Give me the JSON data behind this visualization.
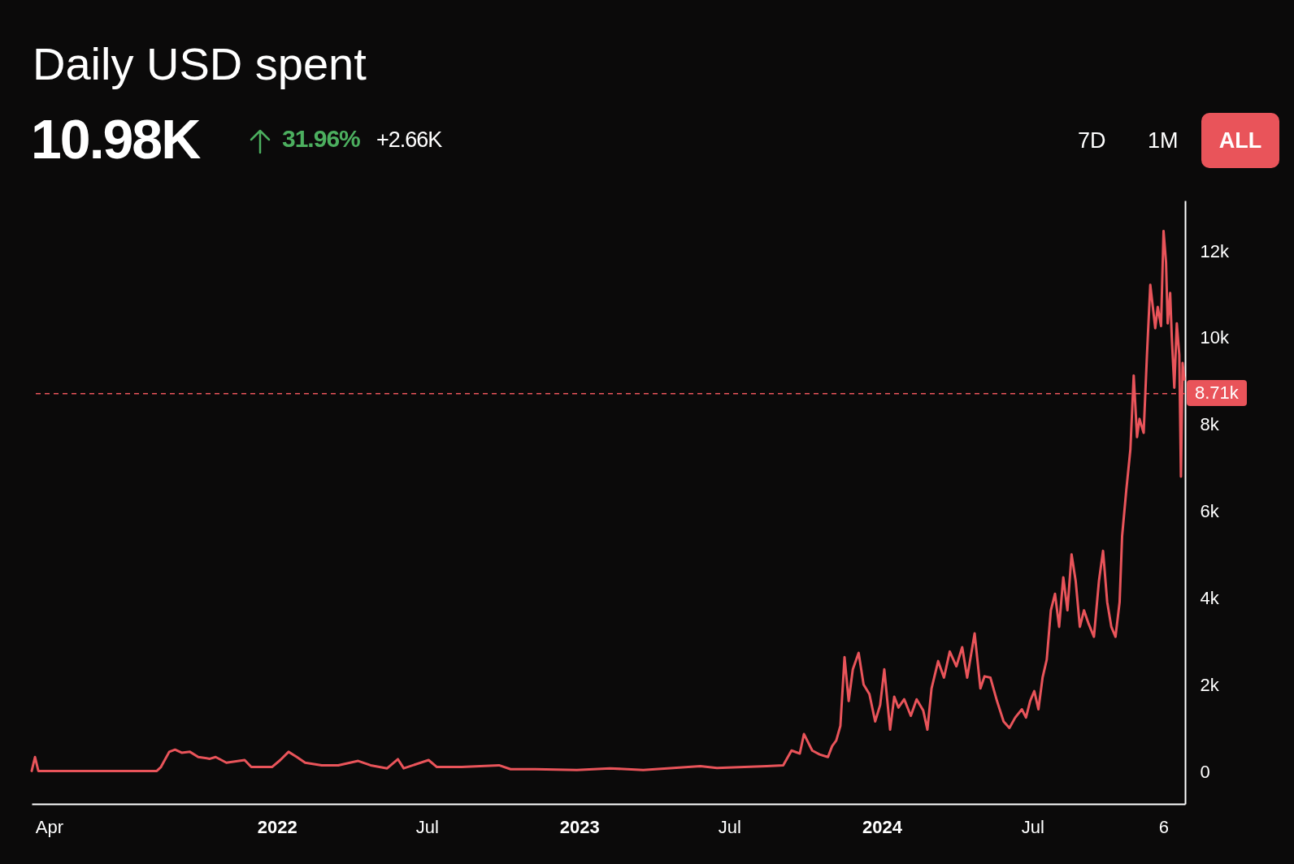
{
  "chart_data": {
    "type": "line",
    "title": "Daily USD spent",
    "annotations": [
      "10.98K",
      "31.96%",
      "+2.66K",
      "7D",
      "1M",
      "ALL"
    ],
    "x": [
      "2021-03-11",
      "2021-03-15",
      "2021-03-19",
      "2021-08-09",
      "2021-08-14",
      "2021-08-24",
      "2021-08-31",
      "2021-09-08",
      "2021-09-18",
      "2021-09-28",
      "2021-10-12",
      "2021-10-19",
      "2021-11-01",
      "2021-11-23",
      "2021-12-01",
      "2021-12-26",
      "2022-01-05",
      "2022-01-15",
      "2022-01-25",
      "2022-02-04",
      "2022-02-24",
      "2022-03-16",
      "2022-04-09",
      "2022-04-24",
      "2022-05-14",
      "2022-05-27",
      "2022-06-03",
      "2022-07-03",
      "2022-07-13",
      "2022-08-12",
      "2022-09-26",
      "2022-10-10",
      "2022-11-09",
      "2022-12-29",
      "2023-02-07",
      "2023-03-19",
      "2023-05-27",
      "2023-06-16",
      "2023-08-15",
      "2023-09-04",
      "2023-09-14",
      "2023-09-24",
      "2023-09-29",
      "2023-10-09",
      "2023-10-18",
      "2023-10-28",
      "2023-11-02",
      "2023-11-07",
      "2023-11-12",
      "2023-11-17",
      "2023-11-22",
      "2023-11-27",
      "2023-12-04",
      "2023-12-10",
      "2023-12-17",
      "2023-12-24",
      "2023-12-30",
      "2024-01-04",
      "2024-01-11",
      "2024-01-16",
      "2024-01-21",
      "2024-01-28",
      "2024-02-05",
      "2024-02-12",
      "2024-02-20",
      "2024-02-25",
      "2024-03-01",
      "2024-03-09",
      "2024-03-16",
      "2024-03-23",
      "2024-03-31",
      "2024-04-07",
      "2024-04-13",
      "2024-04-17",
      "2024-04-22",
      "2024-04-29",
      "2024-05-04",
      "2024-05-11",
      "2024-05-19",
      "2024-05-27",
      "2024-06-03",
      "2024-06-10",
      "2024-06-18",
      "2024-06-23",
      "2024-06-28",
      "2024-07-03",
      "2024-07-08",
      "2024-07-13",
      "2024-07-18",
      "2024-07-23",
      "2024-07-28",
      "2024-08-02",
      "2024-08-07",
      "2024-08-12",
      "2024-08-17",
      "2024-08-22",
      "2024-08-27",
      "2024-09-01",
      "2024-09-06",
      "2024-09-13",
      "2024-09-19",
      "2024-09-24",
      "2024-09-29",
      "2024-10-04",
      "2024-10-09",
      "2024-10-14",
      "2024-10-17",
      "2024-10-22",
      "2024-10-27",
      "2024-10-31",
      "2024-11-04",
      "2024-11-07",
      "2024-11-12",
      "2024-11-16",
      "2024-11-20",
      "2024-11-26",
      "2024-11-29",
      "2024-12-03",
      "2024-12-06",
      "2024-12-09",
      "2024-12-11",
      "2024-12-14",
      "2024-12-16",
      "2024-12-19",
      "2024-12-22",
      "2024-12-25",
      "2024-12-27",
      "2024-12-29",
      "2024-12-31"
    ],
    "series": [
      {
        "color": "#e9545a",
        "values": [
          20,
          340,
          20,
          20,
          110,
          460,
          510,
          440,
          460,
          340,
          300,
          340,
          210,
          270,
          110,
          110,
          270,
          460,
          340,
          210,
          150,
          150,
          250,
          150,
          80,
          290,
          80,
          270,
          110,
          110,
          150,
          60,
          60,
          40,
          80,
          40,
          130,
          90,
          130,
          150,
          490,
          420,
          870,
          490,
          400,
          340,
          590,
          720,
          1060,
          2640,
          1630,
          2360,
          2740,
          2010,
          1790,
          1160,
          1540,
          2360,
          970,
          1730,
          1480,
          1670,
          1290,
          1670,
          1410,
          970,
          1920,
          2550,
          2170,
          2770,
          2430,
          2870,
          2170,
          2620,
          3190,
          1920,
          2200,
          2170,
          1630,
          1160,
          1010,
          1250,
          1440,
          1250,
          1630,
          1860,
          1440,
          2170,
          2580,
          3720,
          4100,
          3340,
          4480,
          3720,
          5010,
          4390,
          3340,
          3720,
          3440,
          3110,
          4390,
          5090,
          3910,
          3340,
          3110,
          3910,
          5430,
          6480,
          7430,
          9130,
          7710,
          8130,
          7810,
          9610,
          11220,
          10220,
          10710,
          10270,
          12460,
          11740,
          10330,
          11030,
          9990,
          8850,
          10330,
          9610,
          6800,
          9420,
          9040
        ]
      }
    ],
    "xlim": [
      "2021-03-11",
      "2025-01-01"
    ],
    "xticks": [
      {
        "value": "2021-04-01",
        "label": "Apr"
      },
      {
        "value": "2022-01-01",
        "label": "2022"
      },
      {
        "value": "2022-07-01",
        "label": "Jul"
      },
      {
        "value": "2023-01-01",
        "label": "2023"
      },
      {
        "value": "2023-07-01",
        "label": "Jul"
      },
      {
        "value": "2024-01-01",
        "label": "2024"
      },
      {
        "value": "2024-07-01",
        "label": "Jul"
      },
      {
        "value": "2024-12-06",
        "label": "6"
      }
    ],
    "ylim": [
      -740,
      13160
    ],
    "yticks": [
      {
        "value": 0,
        "label": "0"
      },
      {
        "value": 2000,
        "label": "2k"
      },
      {
        "value": 4000,
        "label": "4k"
      },
      {
        "value": 6000,
        "label": "6k"
      },
      {
        "value": 8000,
        "label": "8k"
      },
      {
        "value": 10000,
        "label": "10k"
      },
      {
        "value": 12000,
        "label": "12k"
      }
    ],
    "ref_lines": [
      {
        "axis": "y",
        "value": 8710,
        "label": "8.71k",
        "color": "#e9545a",
        "line_style": "dashed"
      }
    ],
    "line_style": "solid",
    "marker": "none",
    "grid": false,
    "legend": false
  }
}
